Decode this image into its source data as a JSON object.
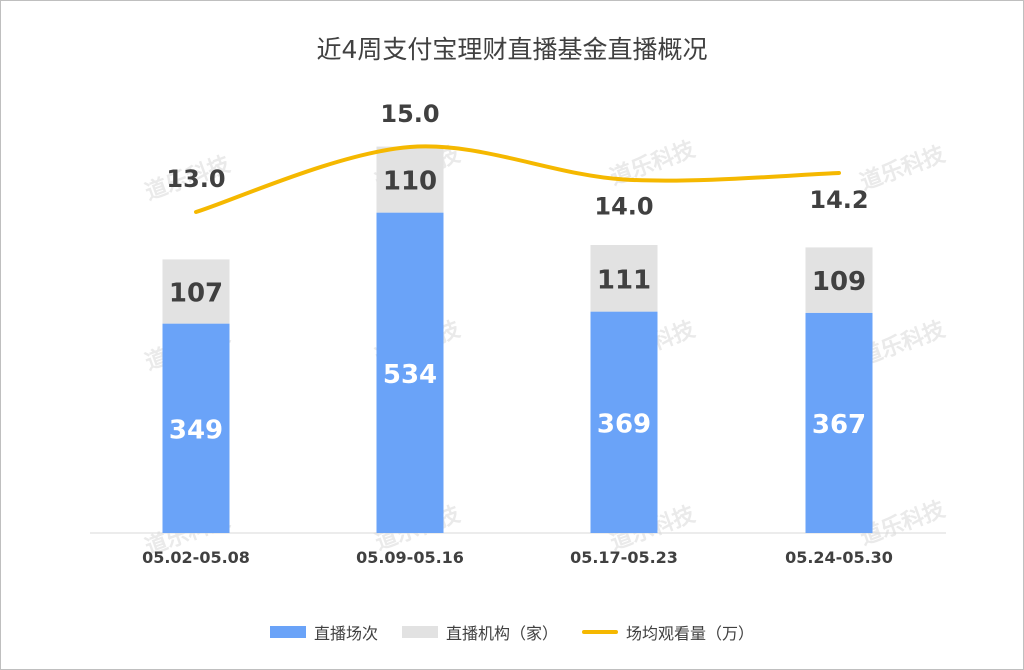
{
  "title": "近4周支付宝理财直播基金直播概况",
  "watermark": "道乐科技",
  "colors": {
    "sessions": "#6aa3f8",
    "institutions": "#e2e2e2",
    "viewers": "#f5b800",
    "axis": "#d9d9d9",
    "label_dark": "#404040",
    "label_light": "#ffffff"
  },
  "chart_data": {
    "type": "bar",
    "stacked": true,
    "title": "近4周支付宝理财直播基金直播概况",
    "categories": [
      "05.02-05.08",
      "05.09-05.16",
      "05.17-05.23",
      "05.24-05.30"
    ],
    "series": [
      {
        "name": "直播场次",
        "type": "bar",
        "values": [
          349,
          534,
          369,
          367
        ]
      },
      {
        "name": "直播机构（家）",
        "type": "bar",
        "values": [
          107,
          110,
          111,
          109
        ]
      },
      {
        "name": "场均观看量（万）",
        "type": "line",
        "values": [
          13.0,
          15.0,
          14.0,
          14.2
        ],
        "labels": [
          "13.0",
          "15.0",
          "14.0",
          "14.2"
        ]
      }
    ],
    "legend_position": "bottom",
    "grid": false
  }
}
